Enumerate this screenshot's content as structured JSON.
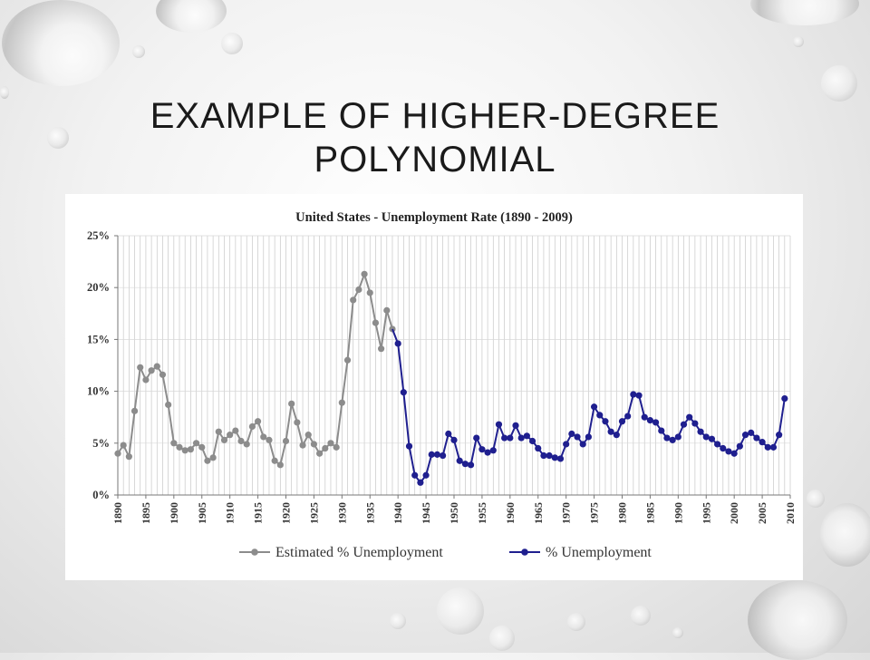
{
  "slide": {
    "title_line1": "EXAMPLE OF HIGHER-DEGREE",
    "title_line2": "POLYNOMIAL"
  },
  "colors": {
    "estimated": "#8c8c8c",
    "actual": "#1f1f8f",
    "grid": "#c8c8c8"
  },
  "chart_data": {
    "type": "line",
    "title": "United States - Unemployment Rate (1890 - 2009)",
    "xlim": [
      1890,
      2010
    ],
    "ylim": [
      0,
      25
    ],
    "y_ticks": [
      0,
      5,
      10,
      15,
      20,
      25
    ],
    "y_tick_labels": [
      "0%",
      "5%",
      "10%",
      "15%",
      "20%",
      "25%"
    ],
    "x_ticks": [
      1890,
      1895,
      1900,
      1905,
      1910,
      1915,
      1920,
      1925,
      1930,
      1935,
      1940,
      1945,
      1950,
      1955,
      1960,
      1965,
      1970,
      1975,
      1980,
      1985,
      1990,
      1995,
      2000,
      2005,
      2010
    ],
    "x_tick_labels": [
      "1890",
      "1895",
      "1900",
      "1905",
      "1910",
      "1915",
      "1920",
      "1925",
      "1930",
      "1935",
      "1940",
      "1945",
      "1950",
      "1955",
      "1960",
      "1965",
      "1970",
      "1975",
      "1980",
      "1985",
      "1990",
      "1995",
      "2000",
      "2005",
      "2010"
    ],
    "grid": "vertical",
    "legend_position": "bottom",
    "series": [
      {
        "name": "Estimated % Unemployment",
        "color": "#8c8c8c",
        "x": [
          1890,
          1891,
          1892,
          1893,
          1894,
          1895,
          1896,
          1897,
          1898,
          1899,
          1900,
          1901,
          1902,
          1903,
          1904,
          1905,
          1906,
          1907,
          1908,
          1909,
          1910,
          1911,
          1912,
          1913,
          1914,
          1915,
          1916,
          1917,
          1918,
          1919,
          1920,
          1921,
          1922,
          1923,
          1924,
          1925,
          1926,
          1927,
          1928,
          1929,
          1930,
          1931,
          1932,
          1933,
          1934,
          1935,
          1936,
          1937,
          1938,
          1939
        ],
        "values": [
          4.0,
          4.8,
          3.7,
          8.1,
          12.3,
          11.1,
          12.0,
          12.4,
          11.6,
          8.7,
          5.0,
          4.6,
          4.3,
          4.4,
          5.0,
          4.6,
          3.3,
          3.6,
          6.1,
          5.3,
          5.8,
          6.2,
          5.2,
          4.9,
          6.6,
          7.1,
          5.6,
          5.3,
          3.3,
          2.9,
          5.2,
          8.8,
          7.0,
          4.8,
          5.8,
          4.9,
          4.0,
          4.5,
          5.0,
          4.6,
          8.9,
          13.0,
          18.8,
          19.8,
          21.3,
          19.5,
          16.6,
          14.1,
          17.8,
          16.0
        ]
      },
      {
        "name": "% Unemployment",
        "color": "#1f1f8f",
        "x": [
          1940,
          1941,
          1942,
          1943,
          1944,
          1945,
          1946,
          1947,
          1948,
          1949,
          1950,
          1951,
          1952,
          1953,
          1954,
          1955,
          1956,
          1957,
          1958,
          1959,
          1960,
          1961,
          1962,
          1963,
          1964,
          1965,
          1966,
          1967,
          1968,
          1969,
          1970,
          1971,
          1972,
          1973,
          1974,
          1975,
          1976,
          1977,
          1978,
          1979,
          1980,
          1981,
          1982,
          1983,
          1984,
          1985,
          1986,
          1987,
          1988,
          1989,
          1990,
          1991,
          1992,
          1993,
          1994,
          1995,
          1996,
          1997,
          1998,
          1999,
          2000,
          2001,
          2002,
          2003,
          2004,
          2005,
          2006,
          2007,
          2008,
          2009
        ],
        "values": [
          14.6,
          9.9,
          4.7,
          1.9,
          1.2,
          1.9,
          3.9,
          3.9,
          3.8,
          5.9,
          5.3,
          3.3,
          3.0,
          2.9,
          5.5,
          4.4,
          4.1,
          4.3,
          6.8,
          5.5,
          5.5,
          6.7,
          5.5,
          5.7,
          5.2,
          4.5,
          3.8,
          3.8,
          3.6,
          3.5,
          4.9,
          5.9,
          5.6,
          4.9,
          5.6,
          8.5,
          7.7,
          7.1,
          6.1,
          5.8,
          7.1,
          7.6,
          9.7,
          9.6,
          7.5,
          7.2,
          7.0,
          6.2,
          5.5,
          5.3,
          5.6,
          6.8,
          7.5,
          6.9,
          6.1,
          5.6,
          5.4,
          4.9,
          4.5,
          4.2,
          4.0,
          4.7,
          5.8,
          6.0,
          5.5,
          5.1,
          4.6,
          4.6,
          5.8,
          9.3
        ]
      }
    ]
  }
}
